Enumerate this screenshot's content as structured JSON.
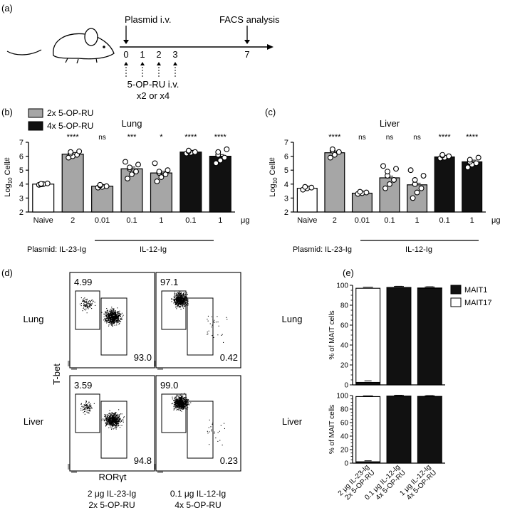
{
  "panel_labels": {
    "a": "(a)",
    "b": "(b)",
    "c": "(c)",
    "d": "(d)",
    "e": "(e)"
  },
  "timeline": {
    "top_left_label": "Plasmid i.v.",
    "top_right_label": "FACS analysis",
    "days": [
      "0",
      "1",
      "2",
      "3",
      "7"
    ],
    "bottom_label_1": "5-OP-RU i.v.",
    "bottom_label_2": "x2 or x4"
  },
  "legend_bc": [
    {
      "label": "2x 5-OP-RU",
      "color": "#a6a6a6"
    },
    {
      "label": "4x 5-OP-RU",
      "color": "#111111"
    }
  ],
  "plasmid_row": {
    "label": "Plasmid:",
    "il23": "IL-23-Ig",
    "il12": "IL-12-Ig",
    "unit": "μg"
  },
  "facs": {
    "rows": [
      "Lung",
      "Liver"
    ],
    "y_axis_label": "T-bet",
    "x_axis_label": "RORγt",
    "plots": [
      {
        "top_left": "4.99",
        "bottom_right": "93.0"
      },
      {
        "top_left": "97.1",
        "bottom_right": "0.42"
      },
      {
        "top_left": "3.59",
        "bottom_right": "94.8"
      },
      {
        "top_left": "99.0",
        "bottom_right": "0.23"
      }
    ],
    "col_captions": [
      [
        "2 μg IL-23-Ig",
        "2x 5-OP-RU"
      ],
      [
        "0.1 μg IL-12-Ig",
        "4x 5-OP-RU"
      ]
    ]
  },
  "chart_data": [
    {
      "type": "bar",
      "panel": "(b)",
      "title": "Lung",
      "ylabel": "Log10 Cell#",
      "ylim": [
        2,
        7
      ],
      "yticks": [
        2,
        3,
        4,
        5,
        6,
        7
      ],
      "categories": [
        "Naive",
        "2",
        "0.01",
        "0.1",
        "1",
        "0.1",
        "1"
      ],
      "values": [
        4.0,
        6.15,
        3.85,
        5.1,
        4.8,
        6.3,
        6.0
      ],
      "bar_colors": [
        "#ffffff",
        "#a6a6a6",
        "#a6a6a6",
        "#a6a6a6",
        "#a6a6a6",
        "#111111",
        "#111111"
      ],
      "significance": [
        "",
        "****",
        "ns",
        "***",
        "*",
        "****",
        "****"
      ],
      "points": [
        [
          3.95,
          4.0,
          4.05,
          3.98,
          4.02
        ],
        [
          5.9,
          6.0,
          6.1,
          6.2,
          6.3,
          6.35
        ],
        [
          3.75,
          3.8,
          3.85,
          3.9,
          3.95
        ],
        [
          4.4,
          4.7,
          4.9,
          5.1,
          5.2,
          5.4,
          5.6
        ],
        [
          4.2,
          4.5,
          4.7,
          4.8,
          4.9,
          5.0,
          5.5
        ],
        [
          6.2,
          6.25,
          6.3,
          6.35,
          6.4
        ],
        [
          5.5,
          5.7,
          5.9,
          6.1,
          6.3,
          6.5
        ]
      ]
    },
    {
      "type": "bar",
      "panel": "(c)",
      "title": "Liver",
      "ylabel": "Log10 Cell#",
      "ylim": [
        2,
        7
      ],
      "yticks": [
        2,
        3,
        4,
        5,
        6,
        7
      ],
      "categories": [
        "Naive",
        "2",
        "0.01",
        "0.1",
        "1",
        "0.1",
        "1"
      ],
      "values": [
        3.7,
        6.25,
        3.35,
        4.45,
        3.95,
        5.95,
        5.6
      ],
      "bar_colors": [
        "#ffffff",
        "#a6a6a6",
        "#a6a6a6",
        "#a6a6a6",
        "#a6a6a6",
        "#111111",
        "#111111"
      ],
      "significance": [
        "",
        "****",
        "ns",
        "ns",
        "ns",
        "****",
        "****"
      ],
      "points": [
        [
          3.6,
          3.7,
          3.75,
          3.8
        ],
        [
          5.9,
          6.1,
          6.3,
          6.4,
          6.5
        ],
        [
          3.3,
          3.35,
          3.4,
          3.45
        ],
        [
          3.7,
          4.0,
          4.3,
          4.6,
          4.9,
          5.1,
          5.3
        ],
        [
          3.0,
          3.4,
          3.7,
          4.0,
          4.3,
          4.6,
          5.0
        ],
        [
          5.85,
          5.9,
          6.0,
          6.05,
          6.1
        ],
        [
          5.2,
          5.4,
          5.5,
          5.6,
          5.75,
          5.9
        ]
      ]
    },
    {
      "type": "bar",
      "panel": "(e)",
      "title": "Lung",
      "ylabel": "% of MAIT cells",
      "ylim": [
        0,
        100
      ],
      "yticks": [
        0,
        20,
        40,
        60,
        80,
        100
      ],
      "categories": [
        "2 μg IL-23-Ig 2x 5-OP-RU",
        "0.1 μg IL-12-Ig 4x 5-OP-RU",
        "1 μg IL-12-Ig 4x 5-OP-RU"
      ],
      "series": [
        {
          "name": "MAIT1",
          "color": "#111111",
          "values": [
            2.5,
            97.5,
            97.0
          ]
        },
        {
          "name": "MAIT17",
          "color": "#ffffff",
          "values": [
            94.5,
            0.3,
            0.3
          ]
        }
      ]
    },
    {
      "type": "bar",
      "panel": "(e)",
      "title": "Liver",
      "ylabel": "% of MAIT cells",
      "ylim": [
        0,
        100
      ],
      "yticks": [
        0,
        20,
        40,
        60,
        80,
        100
      ],
      "categories": [
        "2 μg IL-23-Ig 2x 5-OP-RU",
        "0.1 μg IL-12-Ig 4x 5-OP-RU",
        "1 μg IL-12-Ig 4x 5-OP-RU"
      ],
      "series": [
        {
          "name": "MAIT1",
          "color": "#111111",
          "values": [
            2.0,
            99.0,
            98.5
          ]
        },
        {
          "name": "MAIT17",
          "color": "#ffffff",
          "values": [
            96.5,
            0.2,
            0.2
          ]
        }
      ]
    }
  ]
}
